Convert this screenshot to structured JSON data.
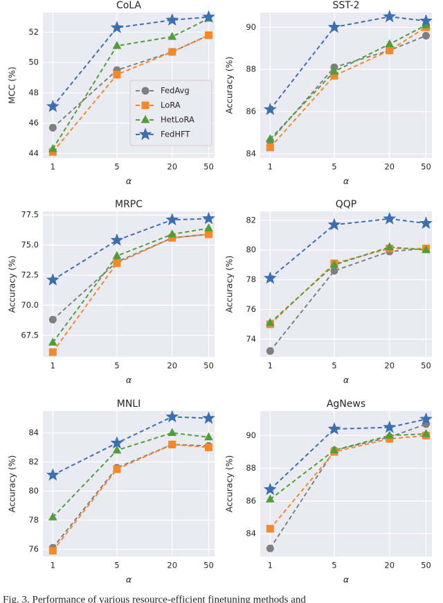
{
  "chart_data": [
    {
      "type": "line",
      "title": "CoLA",
      "ylabel": "MCC (%)",
      "xlabel": "α",
      "xscale": "log",
      "x": [
        1,
        5,
        20,
        50
      ],
      "xlim": [
        0.78,
        58
      ],
      "xticks": [
        1,
        5,
        20,
        50
      ],
      "ylim": [
        43.7,
        53.3
      ],
      "yticks": [
        44,
        46,
        48,
        50,
        52
      ],
      "grid": true,
      "legend": "lower right",
      "series": [
        {
          "name": "FedAvg",
          "color": "#7f7f7f",
          "marker": "circle",
          "values": [
            45.7,
            49.5,
            50.7,
            51.8
          ]
        },
        {
          "name": "LoRA",
          "color": "#f5892a",
          "marker": "square",
          "values": [
            44.1,
            49.2,
            50.7,
            51.8
          ]
        },
        {
          "name": "HetLoRA",
          "color": "#4f9e3a",
          "marker": "triangle",
          "values": [
            44.3,
            51.1,
            51.7,
            52.9
          ]
        },
        {
          "name": "FedHFT",
          "color": "#3a70b0",
          "marker": "star",
          "values": [
            47.1,
            52.3,
            52.8,
            53.0
          ]
        }
      ]
    },
    {
      "type": "line",
      "title": "SST-2",
      "ylabel": "Accuracy (%)",
      "xlabel": "α",
      "xscale": "log",
      "x": [
        1,
        5,
        20,
        50
      ],
      "xlim": [
        0.78,
        58
      ],
      "xticks": [
        1,
        5,
        20,
        50
      ],
      "ylim": [
        83.8,
        90.7
      ],
      "yticks": [
        84,
        86,
        88,
        90
      ],
      "grid": true,
      "series": [
        {
          "color": "#7f7f7f",
          "marker": "circle",
          "values": [
            84.6,
            88.1,
            88.9,
            89.6
          ]
        },
        {
          "color": "#f5892a",
          "marker": "square",
          "values": [
            84.3,
            87.7,
            88.9,
            90.0
          ]
        },
        {
          "color": "#4f9e3a",
          "marker": "triangle",
          "values": [
            84.7,
            87.9,
            89.2,
            90.1
          ]
        },
        {
          "color": "#3a70b0",
          "marker": "star",
          "values": [
            86.1,
            90.0,
            90.5,
            90.3
          ]
        }
      ]
    },
    {
      "type": "line",
      "title": "MRPC",
      "ylabel": "Accuracy (%)",
      "xlabel": "α",
      "xscale": "log",
      "x": [
        1,
        5,
        20,
        50
      ],
      "xlim": [
        0.78,
        58
      ],
      "xticks": [
        1,
        5,
        20,
        50
      ],
      "ylim": [
        65.7,
        77.8
      ],
      "yticks": [
        67.5,
        {
          "value": 70,
          "label": "70.0"
        },
        72.5,
        {
          "value": 75,
          "label": "75.0"
        },
        77.5
      ],
      "grid": true,
      "series": [
        {
          "color": "#7f7f7f",
          "marker": "circle",
          "values": [
            68.8,
            73.6,
            75.6,
            75.9
          ]
        },
        {
          "color": "#f5892a",
          "marker": "square",
          "values": [
            66.1,
            73.5,
            75.6,
            75.9
          ]
        },
        {
          "color": "#4f9e3a",
          "marker": "triangle",
          "values": [
            66.9,
            74.1,
            75.9,
            76.4
          ]
        },
        {
          "color": "#3a70b0",
          "marker": "star",
          "values": [
            72.1,
            75.4,
            77.1,
            77.2
          ]
        }
      ]
    },
    {
      "type": "line",
      "title": "QQP",
      "ylabel": "Accuracy (%)",
      "xlabel": "α",
      "xscale": "log",
      "x": [
        1,
        5,
        20,
        50
      ],
      "xlim": [
        0.78,
        58
      ],
      "xticks": [
        1,
        5,
        20,
        50
      ],
      "ylim": [
        72.8,
        82.6
      ],
      "yticks": [
        74,
        76,
        78,
        80,
        82
      ],
      "grid": true,
      "series": [
        {
          "color": "#7f7f7f",
          "marker": "circle",
          "values": [
            73.2,
            78.6,
            79.9,
            80.1
          ]
        },
        {
          "color": "#f5892a",
          "marker": "square",
          "values": [
            75.0,
            79.1,
            80.1,
            80.1
          ]
        },
        {
          "color": "#4f9e3a",
          "marker": "triangle",
          "values": [
            75.1,
            79.0,
            80.2,
            80.0
          ]
        },
        {
          "color": "#3a70b0",
          "marker": "star",
          "values": [
            78.1,
            81.7,
            82.1,
            81.8
          ]
        }
      ]
    },
    {
      "type": "line",
      "title": "MNLI",
      "ylabel": "Accuracy (%)",
      "xlabel": "α",
      "xscale": "log",
      "x": [
        1,
        5,
        20,
        50
      ],
      "xlim": [
        0.78,
        58
      ],
      "xticks": [
        1,
        5,
        20,
        50
      ],
      "ylim": [
        75.5,
        85.5
      ],
      "yticks": [
        76,
        78,
        80,
        82,
        84
      ],
      "grid": true,
      "series": [
        {
          "color": "#7f7f7f",
          "marker": "circle",
          "values": [
            76.1,
            81.6,
            83.2,
            83.1
          ]
        },
        {
          "color": "#f5892a",
          "marker": "square",
          "values": [
            75.9,
            81.5,
            83.2,
            83.0
          ]
        },
        {
          "color": "#4f9e3a",
          "marker": "triangle",
          "values": [
            78.2,
            82.8,
            84.0,
            83.7
          ]
        },
        {
          "color": "#3a70b0",
          "marker": "star",
          "values": [
            81.1,
            83.3,
            85.1,
            85.0
          ]
        }
      ]
    },
    {
      "type": "line",
      "title": "AgNews",
      "ylabel": "Accuracy (%)",
      "xlabel": "α",
      "xscale": "log",
      "x": [
        1,
        5,
        20,
        50
      ],
      "xlim": [
        0.78,
        58
      ],
      "xticks": [
        1,
        5,
        20,
        50
      ],
      "ylim": [
        82.6,
        91.5
      ],
      "yticks": [
        84,
        86,
        88,
        90
      ],
      "grid": true,
      "series": [
        {
          "color": "#7f7f7f",
          "marker": "circle",
          "values": [
            83.1,
            89.1,
            89.9,
            90.7
          ]
        },
        {
          "color": "#f5892a",
          "marker": "square",
          "values": [
            84.3,
            89.0,
            89.8,
            90.0
          ]
        },
        {
          "color": "#4f9e3a",
          "marker": "triangle",
          "values": [
            86.1,
            89.1,
            90.0,
            90.1
          ]
        },
        {
          "color": "#3a70b0",
          "marker": "star",
          "values": [
            86.7,
            90.4,
            90.5,
            91.0
          ]
        }
      ]
    }
  ],
  "caption": "Fig. 3.   Performance of various resource-efficient finetuning methods and"
}
